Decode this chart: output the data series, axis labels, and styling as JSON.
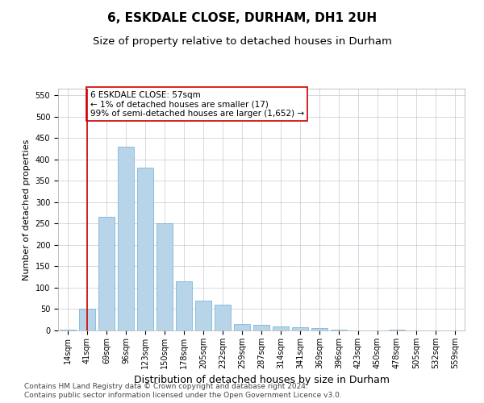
{
  "title": "6, ESKDALE CLOSE, DURHAM, DH1 2UH",
  "subtitle": "Size of property relative to detached houses in Durham",
  "xlabel": "Distribution of detached houses by size in Durham",
  "ylabel": "Number of detached properties",
  "categories": [
    "14sqm",
    "41sqm",
    "69sqm",
    "96sqm",
    "123sqm",
    "150sqm",
    "178sqm",
    "205sqm",
    "232sqm",
    "259sqm",
    "287sqm",
    "314sqm",
    "341sqm",
    "369sqm",
    "396sqm",
    "423sqm",
    "450sqm",
    "478sqm",
    "505sqm",
    "532sqm",
    "559sqm"
  ],
  "values": [
    2,
    50,
    265,
    430,
    380,
    250,
    115,
    70,
    60,
    15,
    13,
    10,
    7,
    5,
    1,
    0,
    0,
    1,
    0,
    0,
    0
  ],
  "bar_color": "#b8d4e8",
  "bar_edgecolor": "#6aaed6",
  "vline_x_index": 1,
  "vline_color": "#cc0000",
  "annotation_text": "6 ESKDALE CLOSE: 57sqm\n← 1% of detached houses are smaller (17)\n99% of semi-detached houses are larger (1,652) →",
  "annotation_box_color": "#ffffff",
  "annotation_box_edgecolor": "#cc0000",
  "ylim": [
    0,
    565
  ],
  "yticks": [
    0,
    50,
    100,
    150,
    200,
    250,
    300,
    350,
    400,
    450,
    500,
    550
  ],
  "background_color": "#ffffff",
  "grid_color": "#c8c8d8",
  "footer_line1": "Contains HM Land Registry data © Crown copyright and database right 2024.",
  "footer_line2": "Contains public sector information licensed under the Open Government Licence v3.0.",
  "title_fontsize": 11,
  "subtitle_fontsize": 9.5,
  "xlabel_fontsize": 9,
  "ylabel_fontsize": 8,
  "annotation_fontsize": 7.5,
  "tick_fontsize": 7,
  "footer_fontsize": 6.5
}
